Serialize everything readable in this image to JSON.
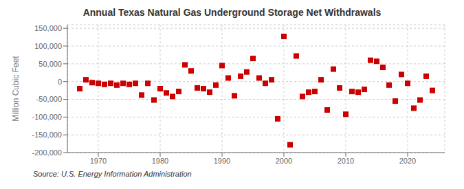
{
  "chart_data": {
    "type": "scatter",
    "title": "Annual Texas Natural Gas Underground Storage Net Withdrawals",
    "ylabel": "Million Cubic Feet",
    "annotations": [
      "Source: U.S. Energy Information Administration"
    ],
    "x": [
      1967,
      1968,
      1969,
      1970,
      1971,
      1972,
      1973,
      1974,
      1975,
      1976,
      1977,
      1978,
      1979,
      1980,
      1981,
      1982,
      1983,
      1984,
      1985,
      1986,
      1987,
      1988,
      1989,
      1990,
      1991,
      1992,
      1993,
      1994,
      1995,
      1996,
      1997,
      1998,
      1999,
      2000,
      2001,
      2002,
      2003,
      2004,
      2005,
      2006,
      2007,
      2008,
      2009,
      2010,
      2011,
      2012,
      2013,
      2014,
      2015,
      2016,
      2017,
      2018,
      2019,
      2020,
      2021,
      2022,
      2023,
      2024
    ],
    "values": [
      -20000,
      5000,
      -3000,
      -5000,
      -8000,
      -5000,
      -10000,
      -5000,
      -8000,
      -5000,
      -38000,
      -5000,
      -52000,
      -20000,
      -32000,
      -42000,
      -28000,
      47000,
      30000,
      -18000,
      -20000,
      -30000,
      -10000,
      45000,
      10000,
      -40000,
      15000,
      27000,
      65000,
      10000,
      -5000,
      5000,
      -105000,
      127000,
      -178000,
      72000,
      -42000,
      -30000,
      -28000,
      5000,
      -80000,
      35000,
      -18000,
      -92000,
      -28000,
      -30000,
      -22000,
      60000,
      57000,
      40000,
      -10000,
      -55000,
      20000,
      -5000,
      -75000,
      -52000,
      15000,
      -25000
    ],
    "color": "#cc0000",
    "marker": "square",
    "xlim": [
      1965,
      2026
    ],
    "ylim": [
      -200000,
      160000
    ],
    "xticks": [
      1970,
      1980,
      1990,
      2000,
      2010,
      2020
    ],
    "yticks": [
      {
        "value": -200000,
        "label": "-200,000"
      },
      {
        "value": -150000,
        "label": "-150,000"
      },
      {
        "value": -100000,
        "label": "-100,000"
      },
      {
        "value": -50000,
        "label": "-50,000"
      },
      0,
      {
        "value": 50000,
        "label": "50,000"
      },
      {
        "value": 100000,
        "label": "100,000"
      },
      {
        "value": 150000,
        "label": "150,000"
      }
    ],
    "grid": true
  }
}
